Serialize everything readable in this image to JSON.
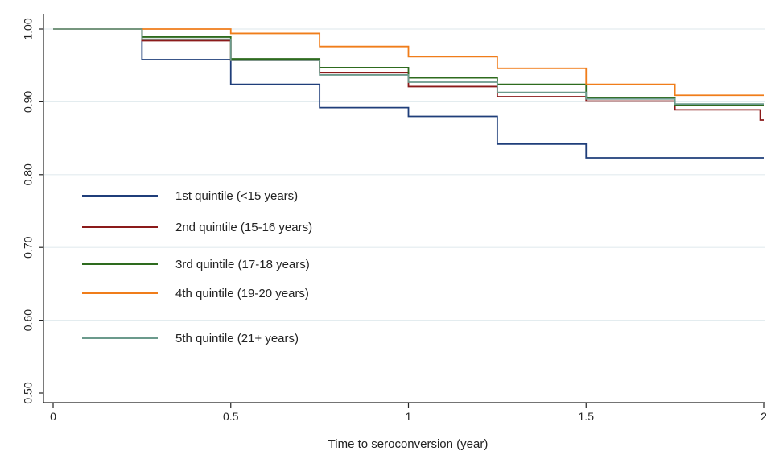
{
  "chart_data": {
    "type": "line",
    "step": true,
    "title": "",
    "xlabel": "Time to seroconversion (year)",
    "ylabel": "",
    "xlim": [
      0,
      2
    ],
    "ylim": [
      0.5,
      1.0
    ],
    "xticks": [
      {
        "value": 0,
        "label": "0"
      },
      {
        "value": 0.5,
        "label": "0.5"
      },
      {
        "value": 1,
        "label": "1"
      },
      {
        "value": 1.5,
        "label": "1.5"
      },
      {
        "value": 2,
        "label": "2"
      }
    ],
    "yticks": [
      {
        "value": 0.5,
        "label": "0.50"
      },
      {
        "value": 0.6,
        "label": "0.60"
      },
      {
        "value": 0.7,
        "label": "0.70"
      },
      {
        "value": 0.8,
        "label": "0.80"
      },
      {
        "value": 0.9,
        "label": "0.90"
      },
      {
        "value": 1.0,
        "label": "1.00"
      }
    ],
    "grid": "horizontal",
    "legend_position": "inside-lower-left",
    "series": [
      {
        "name": "1st quintile (<15 years)",
        "color": "#1f3e7a",
        "points": [
          [
            0,
            1.0
          ],
          [
            0.25,
            0.958
          ],
          [
            0.5,
            0.924
          ],
          [
            0.75,
            0.892
          ],
          [
            1.0,
            0.88
          ],
          [
            1.25,
            0.842
          ],
          [
            1.5,
            0.823
          ],
          [
            2.0,
            0.823
          ]
        ]
      },
      {
        "name": "2nd quintile (15-16 years)",
        "color": "#8b1a1a",
        "points": [
          [
            0,
            1.0
          ],
          [
            0.25,
            0.984
          ],
          [
            0.5,
            0.957
          ],
          [
            0.75,
            0.94
          ],
          [
            1.0,
            0.921
          ],
          [
            1.25,
            0.907
          ],
          [
            1.5,
            0.901
          ],
          [
            1.75,
            0.889
          ],
          [
            1.99,
            0.889
          ],
          [
            1.99,
            0.875
          ],
          [
            2.0,
            0.875
          ]
        ]
      },
      {
        "name": "3rd quintile (17-18 years)",
        "color": "#2e6b1e",
        "points": [
          [
            0,
            1.0
          ],
          [
            0.25,
            0.989
          ],
          [
            0.5,
            0.959
          ],
          [
            0.75,
            0.947
          ],
          [
            1.0,
            0.933
          ],
          [
            1.25,
            0.924
          ],
          [
            1.5,
            0.905
          ],
          [
            1.75,
            0.895
          ],
          [
            2.0,
            0.895
          ]
        ]
      },
      {
        "name": "4th quintile (19-20 years)",
        "color": "#f07d1a",
        "points": [
          [
            0,
            1.0
          ],
          [
            0.5,
            0.994
          ],
          [
            0.75,
            0.976
          ],
          [
            1.0,
            0.962
          ],
          [
            1.25,
            0.946
          ],
          [
            1.5,
            0.924
          ],
          [
            1.75,
            0.909
          ],
          [
            2.0,
            0.909
          ]
        ]
      },
      {
        "name": "5th quintile (21+ years)",
        "color": "#6b9a8c",
        "points": [
          [
            0,
            1.0
          ],
          [
            0.25,
            0.986
          ],
          [
            0.5,
            0.957
          ],
          [
            0.75,
            0.937
          ],
          [
            1.0,
            0.927
          ],
          [
            1.25,
            0.913
          ],
          [
            1.5,
            0.904
          ],
          [
            1.75,
            0.897
          ],
          [
            2.0,
            0.897
          ]
        ]
      }
    ]
  }
}
